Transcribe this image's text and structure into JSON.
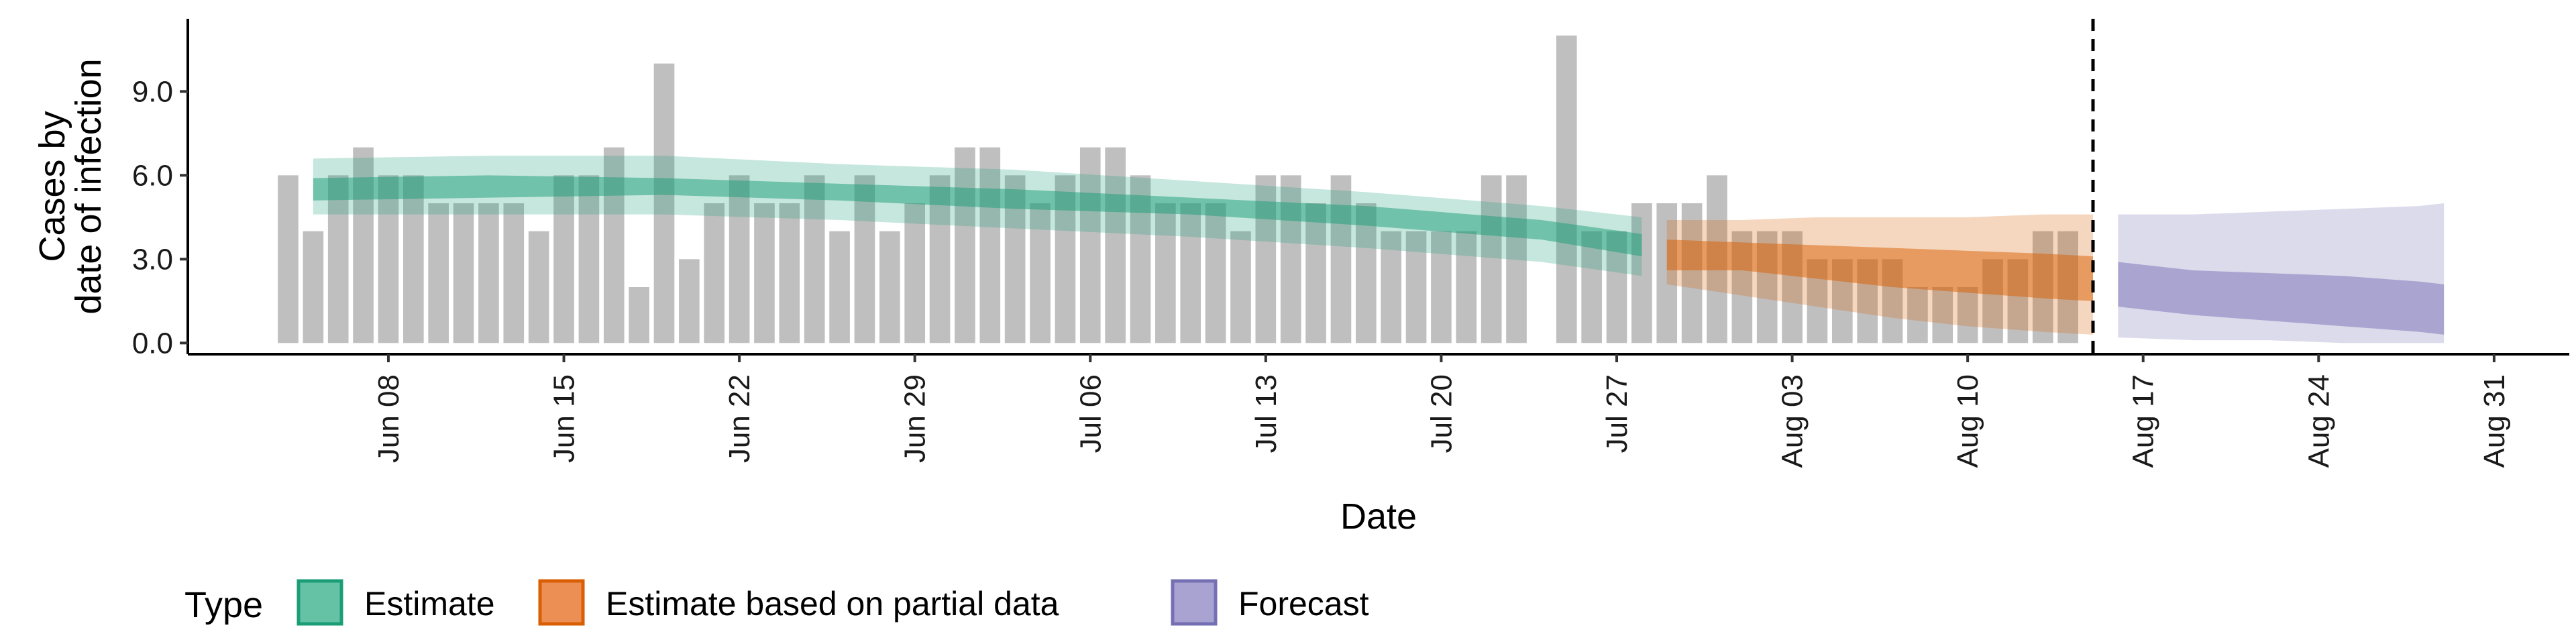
{
  "chart_data": {
    "type": "bar",
    "xlabel": "Date",
    "ylabel_lines": [
      "Cases by",
      "date of infection"
    ],
    "ylim": [
      -0.4,
      11.6
    ],
    "y_ticks": [
      0.0,
      3.0,
      6.0,
      9.0
    ],
    "y_tick_labels": [
      "0.0",
      "3.0",
      "6.0",
      "9.0"
    ],
    "x_range": [
      "2020-05-31",
      "2020-09-03"
    ],
    "x_ticks": [
      "2020-06-08",
      "2020-06-15",
      "2020-06-22",
      "2020-06-29",
      "2020-07-06",
      "2020-07-13",
      "2020-07-20",
      "2020-07-27",
      "2020-08-03",
      "2020-08-10",
      "2020-08-17",
      "2020-08-24",
      "2020-08-31"
    ],
    "x_tick_labels": [
      "Jun 08",
      "Jun 15",
      "Jun 22",
      "Jun 29",
      "Jul 06",
      "Jul 13",
      "Jul 20",
      "Jul 27",
      "Aug 03",
      "Aug 10",
      "Aug 17",
      "Aug 24",
      "Aug 31"
    ],
    "forecast_start_line": "2020-08-15",
    "grid": false,
    "legend": {
      "title": "Type",
      "position": "bottom",
      "entries": [
        {
          "label": "Estimate",
          "fill": "#66c2a5",
          "stroke": "#1b9e77"
        },
        {
          "label": "Estimate based on partial data",
          "fill": "#eb8f55",
          "stroke": "#d95f02"
        },
        {
          "label": "Forecast",
          "fill": "#a8a3d1",
          "stroke": "#7570b3"
        }
      ]
    },
    "colors": {
      "bars": "#bfbfbf",
      "estimate": "#1b9e77",
      "partial": "#d95f02",
      "forecast": "#7570b3"
    },
    "reported_cases": {
      "start_date": "2020-06-04",
      "values": [
        6,
        4,
        6,
        7,
        6,
        6,
        5,
        5,
        5,
        5,
        4,
        6,
        6,
        7,
        2,
        10,
        3,
        5,
        6,
        5,
        5,
        6,
        4,
        6,
        4,
        5,
        6,
        7,
        7,
        6,
        5,
        6,
        7,
        7,
        6,
        5,
        5,
        5,
        4,
        6,
        6,
        5,
        6,
        5,
        4,
        4,
        4,
        4,
        6,
        6,
        0,
        11,
        4,
        4,
        5,
        5,
        5,
        6,
        4,
        4,
        4,
        3,
        3,
        3,
        3,
        2,
        2,
        2,
        3,
        3,
        4,
        4
      ]
    },
    "series": [
      {
        "name": "Estimate",
        "dates": [
          "2020-06-05",
          "2020-06-12",
          "2020-06-19",
          "2020-06-26",
          "2020-07-03",
          "2020-07-10",
          "2020-07-17",
          "2020-07-24",
          "2020-07-28"
        ],
        "median_low": [
          5.1,
          5.2,
          5.3,
          5.1,
          4.8,
          4.6,
          4.2,
          3.7,
          3.1
        ],
        "median_high": [
          5.9,
          6.0,
          5.9,
          5.7,
          5.5,
          5.2,
          4.9,
          4.4,
          3.9
        ],
        "outer_low": [
          4.6,
          4.6,
          4.6,
          4.4,
          4.1,
          3.8,
          3.4,
          2.9,
          2.4
        ],
        "outer_high": [
          6.6,
          6.7,
          6.7,
          6.4,
          6.2,
          5.8,
          5.4,
          4.9,
          4.5
        ]
      },
      {
        "name": "Estimate based on partial data",
        "dates": [
          "2020-07-29",
          "2020-08-01",
          "2020-08-04",
          "2020-08-07",
          "2020-08-10",
          "2020-08-13",
          "2020-08-15"
        ],
        "median_low": [
          2.6,
          2.6,
          2.3,
          2.0,
          1.8,
          1.6,
          1.5
        ],
        "median_high": [
          3.7,
          3.6,
          3.5,
          3.4,
          3.3,
          3.2,
          3.1
        ],
        "outer_low": [
          2.1,
          1.7,
          1.3,
          0.9,
          0.6,
          0.4,
          0.3
        ],
        "outer_high": [
          4.4,
          4.4,
          4.5,
          4.5,
          4.5,
          4.6,
          4.6
        ]
      },
      {
        "name": "Forecast",
        "dates": [
          "2020-08-16",
          "2020-08-19",
          "2020-08-22",
          "2020-08-25",
          "2020-08-28",
          "2020-08-29"
        ],
        "median_low": [
          1.3,
          1.0,
          0.8,
          0.6,
          0.4,
          0.3
        ],
        "median_high": [
          2.9,
          2.6,
          2.5,
          2.4,
          2.2,
          2.1
        ],
        "outer_low": [
          0.2,
          0.1,
          0.1,
          0.0,
          0.0,
          0.0
        ],
        "outer_high": [
          4.6,
          4.6,
          4.7,
          4.8,
          4.9,
          5.0
        ]
      }
    ]
  }
}
